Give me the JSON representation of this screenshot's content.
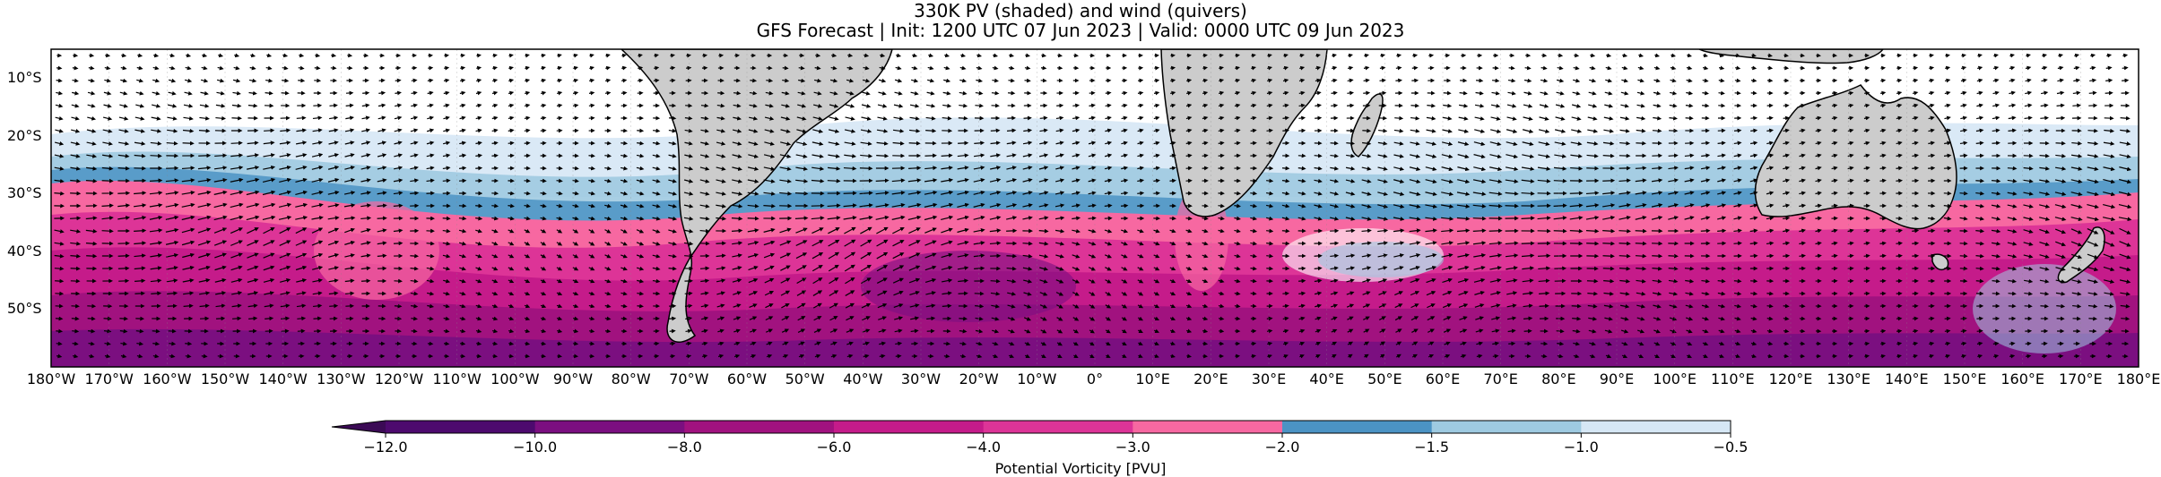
{
  "title": {
    "line1": "330K PV (shaded) and wind (quivers)",
    "line2": "GFS Forecast | Init: 1200 UTC 07 Jun 2023 | Valid: 0000 UTC 09 Jun 2023"
  },
  "map": {
    "lon_range": [
      -180,
      180
    ],
    "lat_range": [
      -60,
      -5
    ],
    "x_ticks": [
      "180°W",
      "170°W",
      "160°W",
      "150°W",
      "140°W",
      "130°W",
      "120°W",
      "110°W",
      "100°W",
      "90°W",
      "80°W",
      "70°W",
      "60°W",
      "50°W",
      "40°W",
      "30°W",
      "20°W",
      "10°W",
      "0°",
      "10°E",
      "20°E",
      "30°E",
      "40°E",
      "50°E",
      "60°E",
      "70°E",
      "80°E",
      "90°E",
      "100°E",
      "110°E",
      "120°E",
      "130°E",
      "140°E",
      "150°E",
      "160°E",
      "170°E",
      "180°E"
    ],
    "y_ticks": [
      "10°S",
      "20°S",
      "30°S",
      "40°S",
      "50°S"
    ],
    "y_tick_values": [
      -10,
      -20,
      -30,
      -40,
      -50
    ],
    "land_color": "#cccccc",
    "ocean_background": "#ffffff"
  },
  "colorbar": {
    "label": "Potential Vorticity [PVU]",
    "ticks": [
      "−12.0",
      "−10.0",
      "−8.0",
      "−6.0",
      "−4.0",
      "−3.0",
      "−2.0",
      "−1.5",
      "−1.0",
      "−0.5"
    ],
    "levels": [
      -12,
      -10,
      -8,
      -6,
      -4,
      -3,
      -2,
      -1.5,
      -1,
      -0.5
    ],
    "colors": [
      "#4d0a6e",
      "#7b0f80",
      "#a1127f",
      "#c51b8a",
      "#dd3497",
      "#f768a1",
      "#4b93c4",
      "#9ecae1",
      "#d6e7f5"
    ]
  }
}
